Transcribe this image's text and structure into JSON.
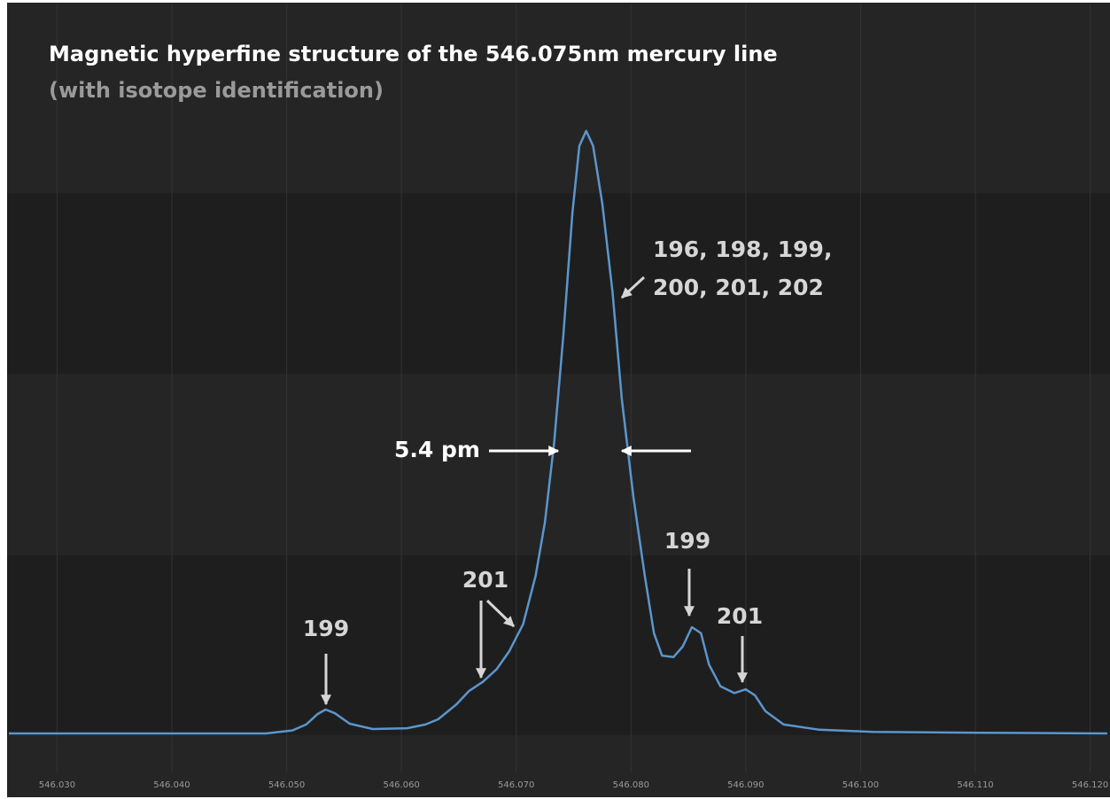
{
  "chart_data": {
    "type": "line",
    "title": "Magnetic hyperfine structure of the 546.075nm mercury line",
    "subtitle": "(with isotope identification)",
    "annotations": [
      "196, 198, 199,",
      "200, 201, 202",
      "5.4 pm",
      "199",
      "201",
      "199",
      "201"
    ],
    "x": [
      546.0258,
      546.0482,
      546.0505,
      546.0517,
      546.0527,
      546.0534,
      546.0542,
      546.0555,
      546.0575,
      546.0605,
      546.0621,
      546.0632,
      546.0648,
      546.0659,
      546.0671,
      546.0683,
      546.0694,
      546.0706,
      546.0717,
      546.0725,
      546.0733,
      546.0741,
      546.0749,
      546.0755,
      546.0761,
      546.0767,
      546.0775,
      546.0784,
      546.0792,
      546.0802,
      546.0812,
      546.082,
      546.0827,
      546.0837,
      546.0845,
      546.0853,
      546.0861,
      546.0868,
      546.0878,
      546.089,
      546.09,
      546.0908,
      546.0917,
      546.0933,
      546.0964,
      546.1011,
      546.1104,
      546.1215
    ],
    "series": [
      {
        "color": "#5b96cc",
        "values": [
          2.6,
          2.6,
          3.0,
          3.8,
          5.2,
          5.8,
          5.3,
          3.9,
          3.2,
          3.3,
          3.8,
          4.5,
          6.5,
          8.3,
          9.5,
          11.2,
          13.6,
          17.2,
          23.7,
          30.8,
          41.4,
          55.6,
          72.2,
          81.1,
          83.1,
          81.1,
          73.4,
          61.5,
          47.3,
          34.3,
          23.7,
          16.0,
          13.0,
          12.8,
          14.2,
          16.8,
          16.0,
          11.8,
          8.9,
          8.0,
          8.5,
          7.7,
          5.6,
          3.8,
          3.1,
          2.8,
          2.7,
          2.6
        ]
      }
    ],
    "xlim": [
      546.0258,
      546.1215
    ],
    "ylim": [
      0,
      100
    ],
    "xticks": [
      {
        "value": 546.03,
        "label": "546.030"
      },
      {
        "value": 546.04,
        "label": "546.040"
      },
      {
        "value": 546.05,
        "label": "546.050"
      },
      {
        "value": 546.06,
        "label": "546.060"
      },
      {
        "value": 546.07,
        "label": "546.070"
      },
      {
        "value": 546.08,
        "label": "546.080"
      },
      {
        "value": 546.09,
        "label": "546.090"
      },
      {
        "value": 546.1,
        "label": "546.100"
      },
      {
        "value": 546.11,
        "label": "546.110"
      },
      {
        "value": 546.12,
        "label": "546.120"
      }
    ],
    "grid": true
  }
}
